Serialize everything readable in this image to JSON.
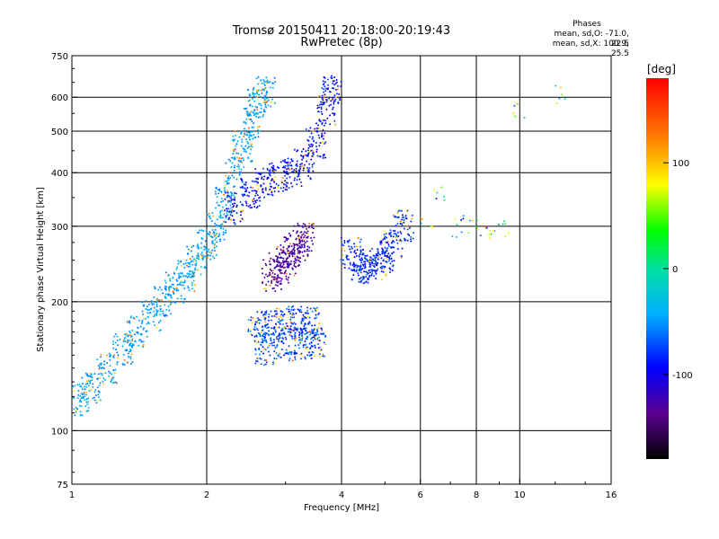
{
  "chart_data": {
    "type": "scatter",
    "title": "Tromsø 20150411 20:18:00-20:19:43",
    "subtitle": "RwPretec (8p)",
    "xlabel": "Frequency [MHz]",
    "ylabel": "Stationary phase Virtual Height [km]",
    "xscale": "log",
    "yscale": "log",
    "xlim": [
      1,
      16
    ],
    "ylim": [
      75,
      750
    ],
    "x_ticks": [
      1,
      2,
      4,
      6,
      8,
      10,
      16
    ],
    "x_tick_labels": [
      "1",
      "2",
      "4",
      "6",
      "8",
      "10",
      "16"
    ],
    "y_ticks": [
      75,
      100,
      200,
      300,
      400,
      500,
      600,
      750
    ],
    "y_tick_labels": [
      "75",
      "100",
      "200",
      "300",
      "400",
      "500",
      "600",
      "750"
    ],
    "grid": true,
    "legend": {
      "title": "Phases",
      "lines": [
        "mean, sd,O: -71.0, 22.5",
        "mean, sd,X: 100.9, 25.5"
      ],
      "placement": "top-right"
    },
    "colorbar": {
      "label": "[deg]",
      "range": [
        -180,
        180
      ],
      "ticks": [
        100,
        0,
        -100
      ],
      "tick_labels": [
        "100",
        "0",
        "-100"
      ],
      "colormap": "rainbow"
    },
    "clusters": [
      {
        "name": "o-trace-low",
        "points": [
          [
            1.05,
            118
          ],
          [
            1.1,
            125
          ],
          [
            1.2,
            140
          ],
          [
            1.3,
            155
          ],
          [
            1.4,
            170
          ],
          [
            1.5,
            185
          ],
          [
            1.6,
            200
          ],
          [
            1.7,
            215
          ],
          [
            1.8,
            230
          ],
          [
            1.9,
            250
          ],
          [
            2.0,
            270
          ],
          [
            2.1,
            300
          ],
          [
            2.2,
            340
          ],
          [
            2.3,
            400
          ],
          [
            2.4,
            460
          ],
          [
            2.5,
            520
          ],
          [
            2.6,
            580
          ],
          [
            2.7,
            620
          ]
        ]
      },
      {
        "name": "o-trace-high",
        "points": [
          [
            2.3,
            330
          ],
          [
            2.5,
            360
          ],
          [
            2.7,
            380
          ],
          [
            2.9,
            390
          ],
          [
            3.1,
            400
          ],
          [
            3.3,
            420
          ],
          [
            3.5,
            470
          ],
          [
            3.7,
            560
          ],
          [
            3.8,
            620
          ]
        ]
      },
      {
        "name": "x-trace-f1",
        "points": [
          [
            2.8,
            230
          ],
          [
            2.9,
            240
          ],
          [
            3.0,
            250
          ],
          [
            3.1,
            260
          ],
          [
            3.2,
            270
          ],
          [
            3.3,
            280
          ]
        ]
      },
      {
        "name": "x-trace-f2",
        "points": [
          [
            4.2,
            260
          ],
          [
            4.4,
            245
          ],
          [
            4.6,
            240
          ],
          [
            4.8,
            245
          ],
          [
            5.0,
            255
          ],
          [
            5.2,
            270
          ],
          [
            5.5,
            300
          ]
        ]
      },
      {
        "name": "e-region",
        "points": [
          [
            2.6,
            175
          ],
          [
            2.8,
            175
          ],
          [
            3.0,
            178
          ],
          [
            3.2,
            180
          ],
          [
            3.4,
            178
          ],
          [
            2.7,
            155
          ],
          [
            3.0,
            158
          ],
          [
            3.3,
            160
          ],
          [
            3.5,
            162
          ]
        ]
      },
      {
        "name": "sporadic",
        "points": [
          [
            6.2,
            310
          ],
          [
            6.6,
            360
          ],
          [
            7.2,
            295
          ],
          [
            7.6,
            305
          ],
          [
            8.2,
            300
          ],
          [
            8.8,
            295
          ],
          [
            9.2,
            300
          ],
          [
            10.0,
            560
          ],
          [
            12.3,
            610
          ]
        ]
      }
    ]
  }
}
